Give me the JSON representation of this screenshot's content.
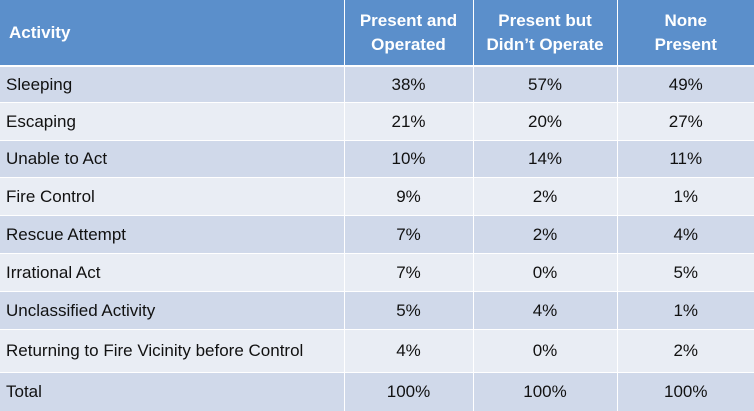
{
  "chart_data": {
    "type": "table",
    "columns": [
      "Activity",
      "Present and\nOperated",
      "Present but\nDidn’t Operate",
      "None\nPresent"
    ],
    "rows": [
      [
        "Sleeping",
        "38%",
        "57%",
        "49%"
      ],
      [
        "Escaping",
        "21%",
        "20%",
        "27%"
      ],
      [
        "Unable to Act",
        "10%",
        "14%",
        "11%"
      ],
      [
        "Fire Control",
        "9%",
        "2%",
        "1%"
      ],
      [
        "Rescue Attempt",
        "7%",
        "2%",
        "4%"
      ],
      [
        "Irrational Act",
        "7%",
        "0%",
        "5%"
      ],
      [
        "Unclassified Activity",
        "5%",
        "4%",
        "1%"
      ],
      [
        "Returning to Fire Vicinity before Control",
        "4%",
        "0%",
        "2%"
      ],
      [
        "Total",
        "100%",
        "100%",
        "100%"
      ]
    ],
    "colors": {
      "header_bg": "#5b8fcb",
      "row_dark": "#d0d9ea",
      "row_light": "#e9edf4"
    }
  }
}
